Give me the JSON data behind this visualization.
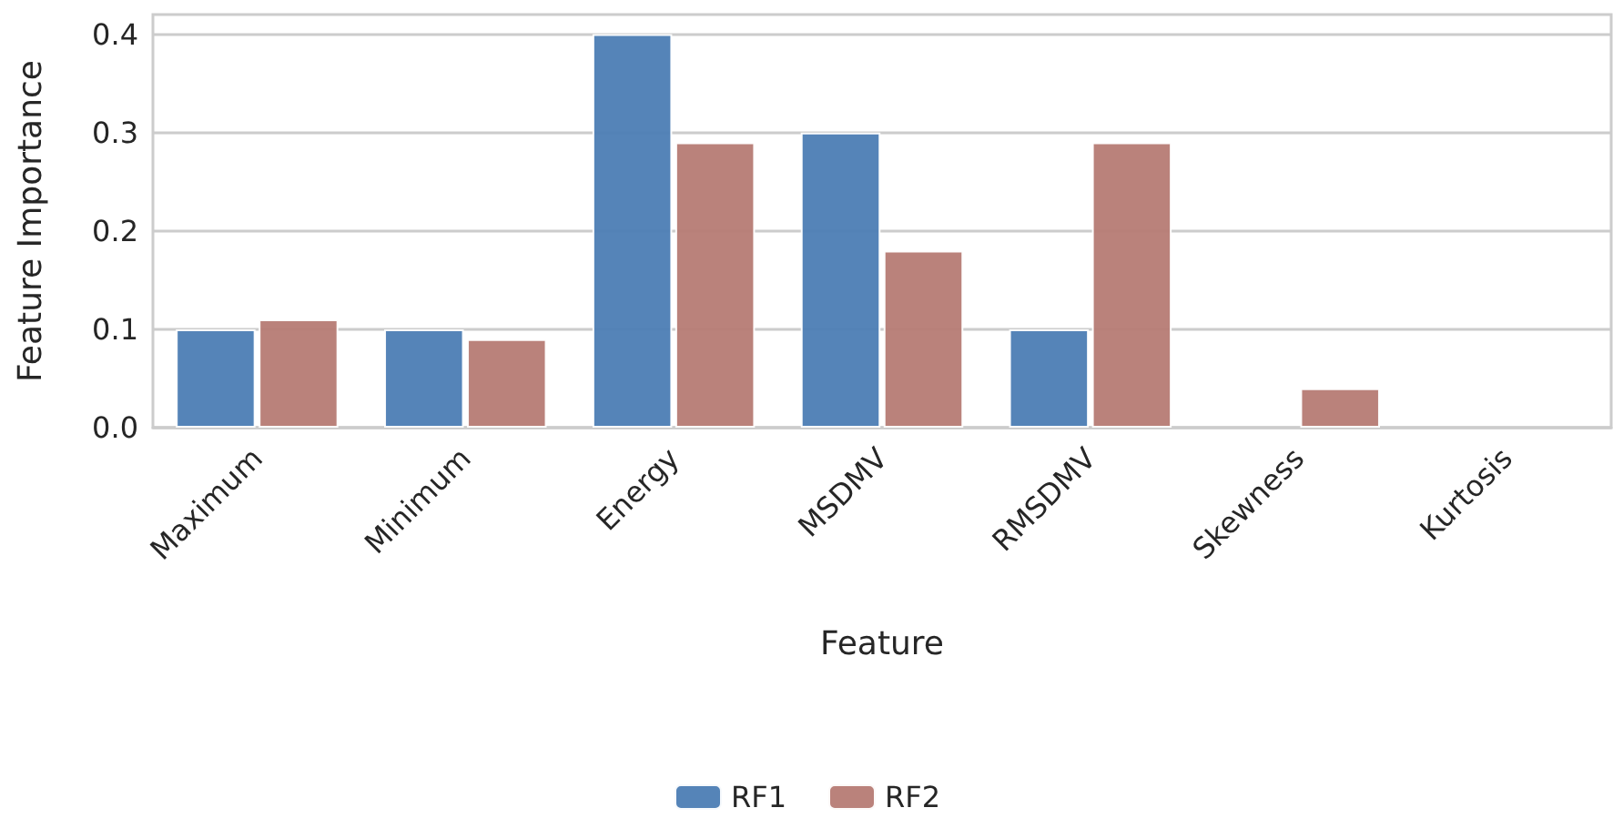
{
  "chart_data": {
    "type": "bar",
    "xlabel": "Feature",
    "ylabel": "Feature Importance",
    "categories": [
      "Maximum",
      "Minimum",
      "Energy",
      "MSDMV",
      "RMSDMV",
      "Skewness",
      "Kurtosis"
    ],
    "series": [
      {
        "name": "RF1",
        "color": "#4c7db4",
        "values": [
          0.1,
          0.1,
          0.4,
          0.3,
          0.1,
          0,
          0
        ]
      },
      {
        "name": "RF2",
        "color": "#b67b74",
        "values": [
          0.11,
          0.09,
          0.29,
          0.18,
          0.29,
          0.04,
          0
        ]
      }
    ],
    "ylim": [
      0,
      0.42
    ],
    "yticks": [
      {
        "value": 0,
        "label": "0.0"
      },
      0.1,
      0.2,
      0.3,
      0.4
    ],
    "grid": "y",
    "legend": "bottom"
  }
}
